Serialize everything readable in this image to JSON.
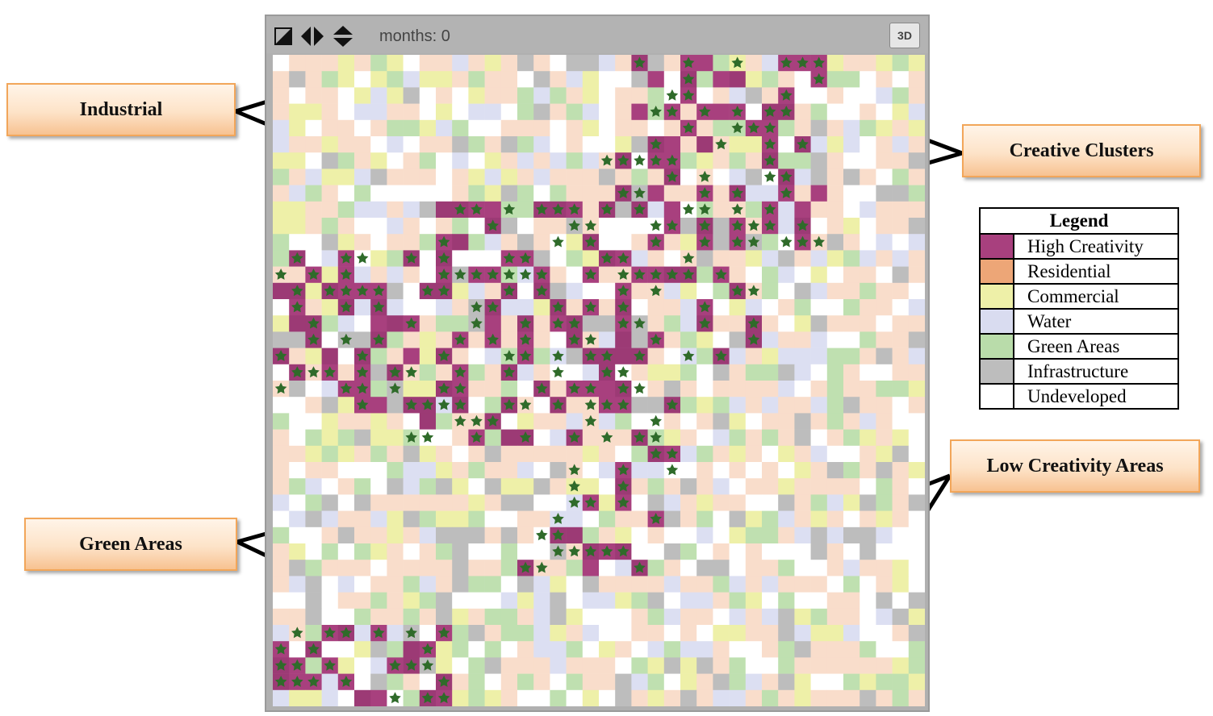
{
  "toolbar": {
    "months_label": "months: 0",
    "view_3d_label": "3D"
  },
  "callouts": {
    "industrial": "Industrial",
    "creative_clusters": "Creative Clusters",
    "green_areas": "Green Areas",
    "low_creativity": "Low Creativity Areas"
  },
  "legend": {
    "title": "Legend",
    "items": [
      {
        "label": "High Creativity",
        "color": "#a8407e"
      },
      {
        "label": "Residential",
        "color": "#eda677"
      },
      {
        "label": "Commercial",
        "color": "#eef0a8"
      },
      {
        "label": "Water",
        "color": "#d9dcf0"
      },
      {
        "label": "Green Areas",
        "color": "#b9dcaa"
      },
      {
        "label": "Infrastructure",
        "color": "#bdbdbd"
      },
      {
        "label": "Undeveloped",
        "color": "#ffffff"
      }
    ]
  },
  "grid_colors": {
    "residential_light": "#f9ddcb",
    "creative": "#a8407e",
    "creative_alt": "#9c3a75",
    "tree": "#2f6b2a",
    "gray": "#bdbdbd",
    "green": "#bfe0b0",
    "commercial": "#eef0a8",
    "water": "#dcdff2",
    "white": "#ffffff"
  }
}
